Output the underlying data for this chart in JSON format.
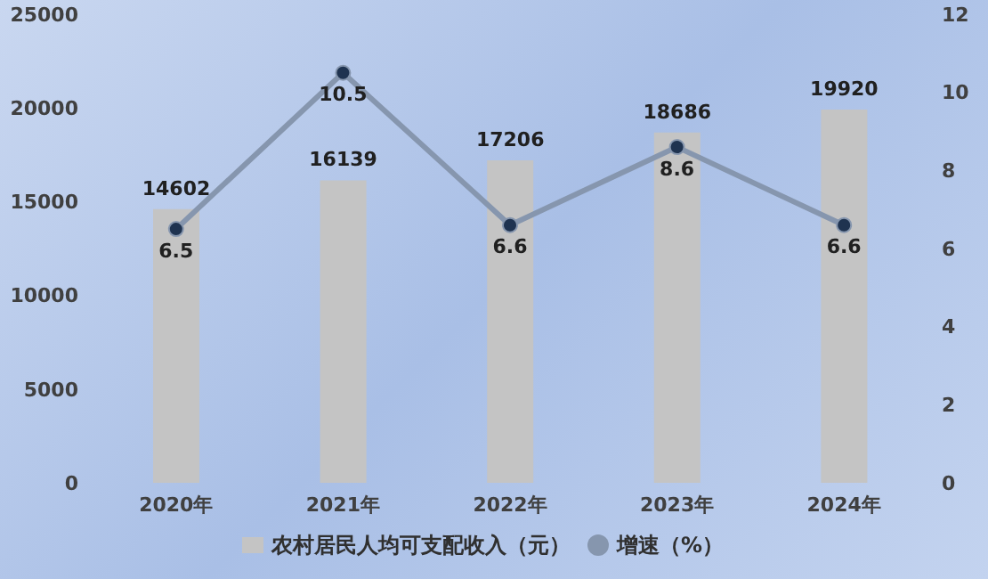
{
  "chart_data": {
    "type": "bar",
    "categories": [
      "2020年",
      "2021年",
      "2022年",
      "2023年",
      "2024年"
    ],
    "series": [
      {
        "name": "农村居民人均可支配收入（元）",
        "color": "#c4c4c4",
        "values": [
          14602,
          16139,
          17206,
          18686,
          19920
        ]
      },
      {
        "name": "增速（%）",
        "type": "line",
        "axis": "y2",
        "color": "#8696ae",
        "values": [
          6.5,
          10.5,
          6.6,
          8.6,
          6.6
        ]
      }
    ],
    "ylim": [
      0,
      25000
    ],
    "yticks": [
      0,
      5000,
      10000,
      15000,
      20000,
      25000
    ],
    "y2lim": [
      0,
      12
    ],
    "y2ticks": [
      0,
      2,
      4,
      6,
      8,
      10,
      12
    ],
    "data_labels": true,
    "grid": false,
    "legend": "bottom",
    "marker": "circle"
  }
}
